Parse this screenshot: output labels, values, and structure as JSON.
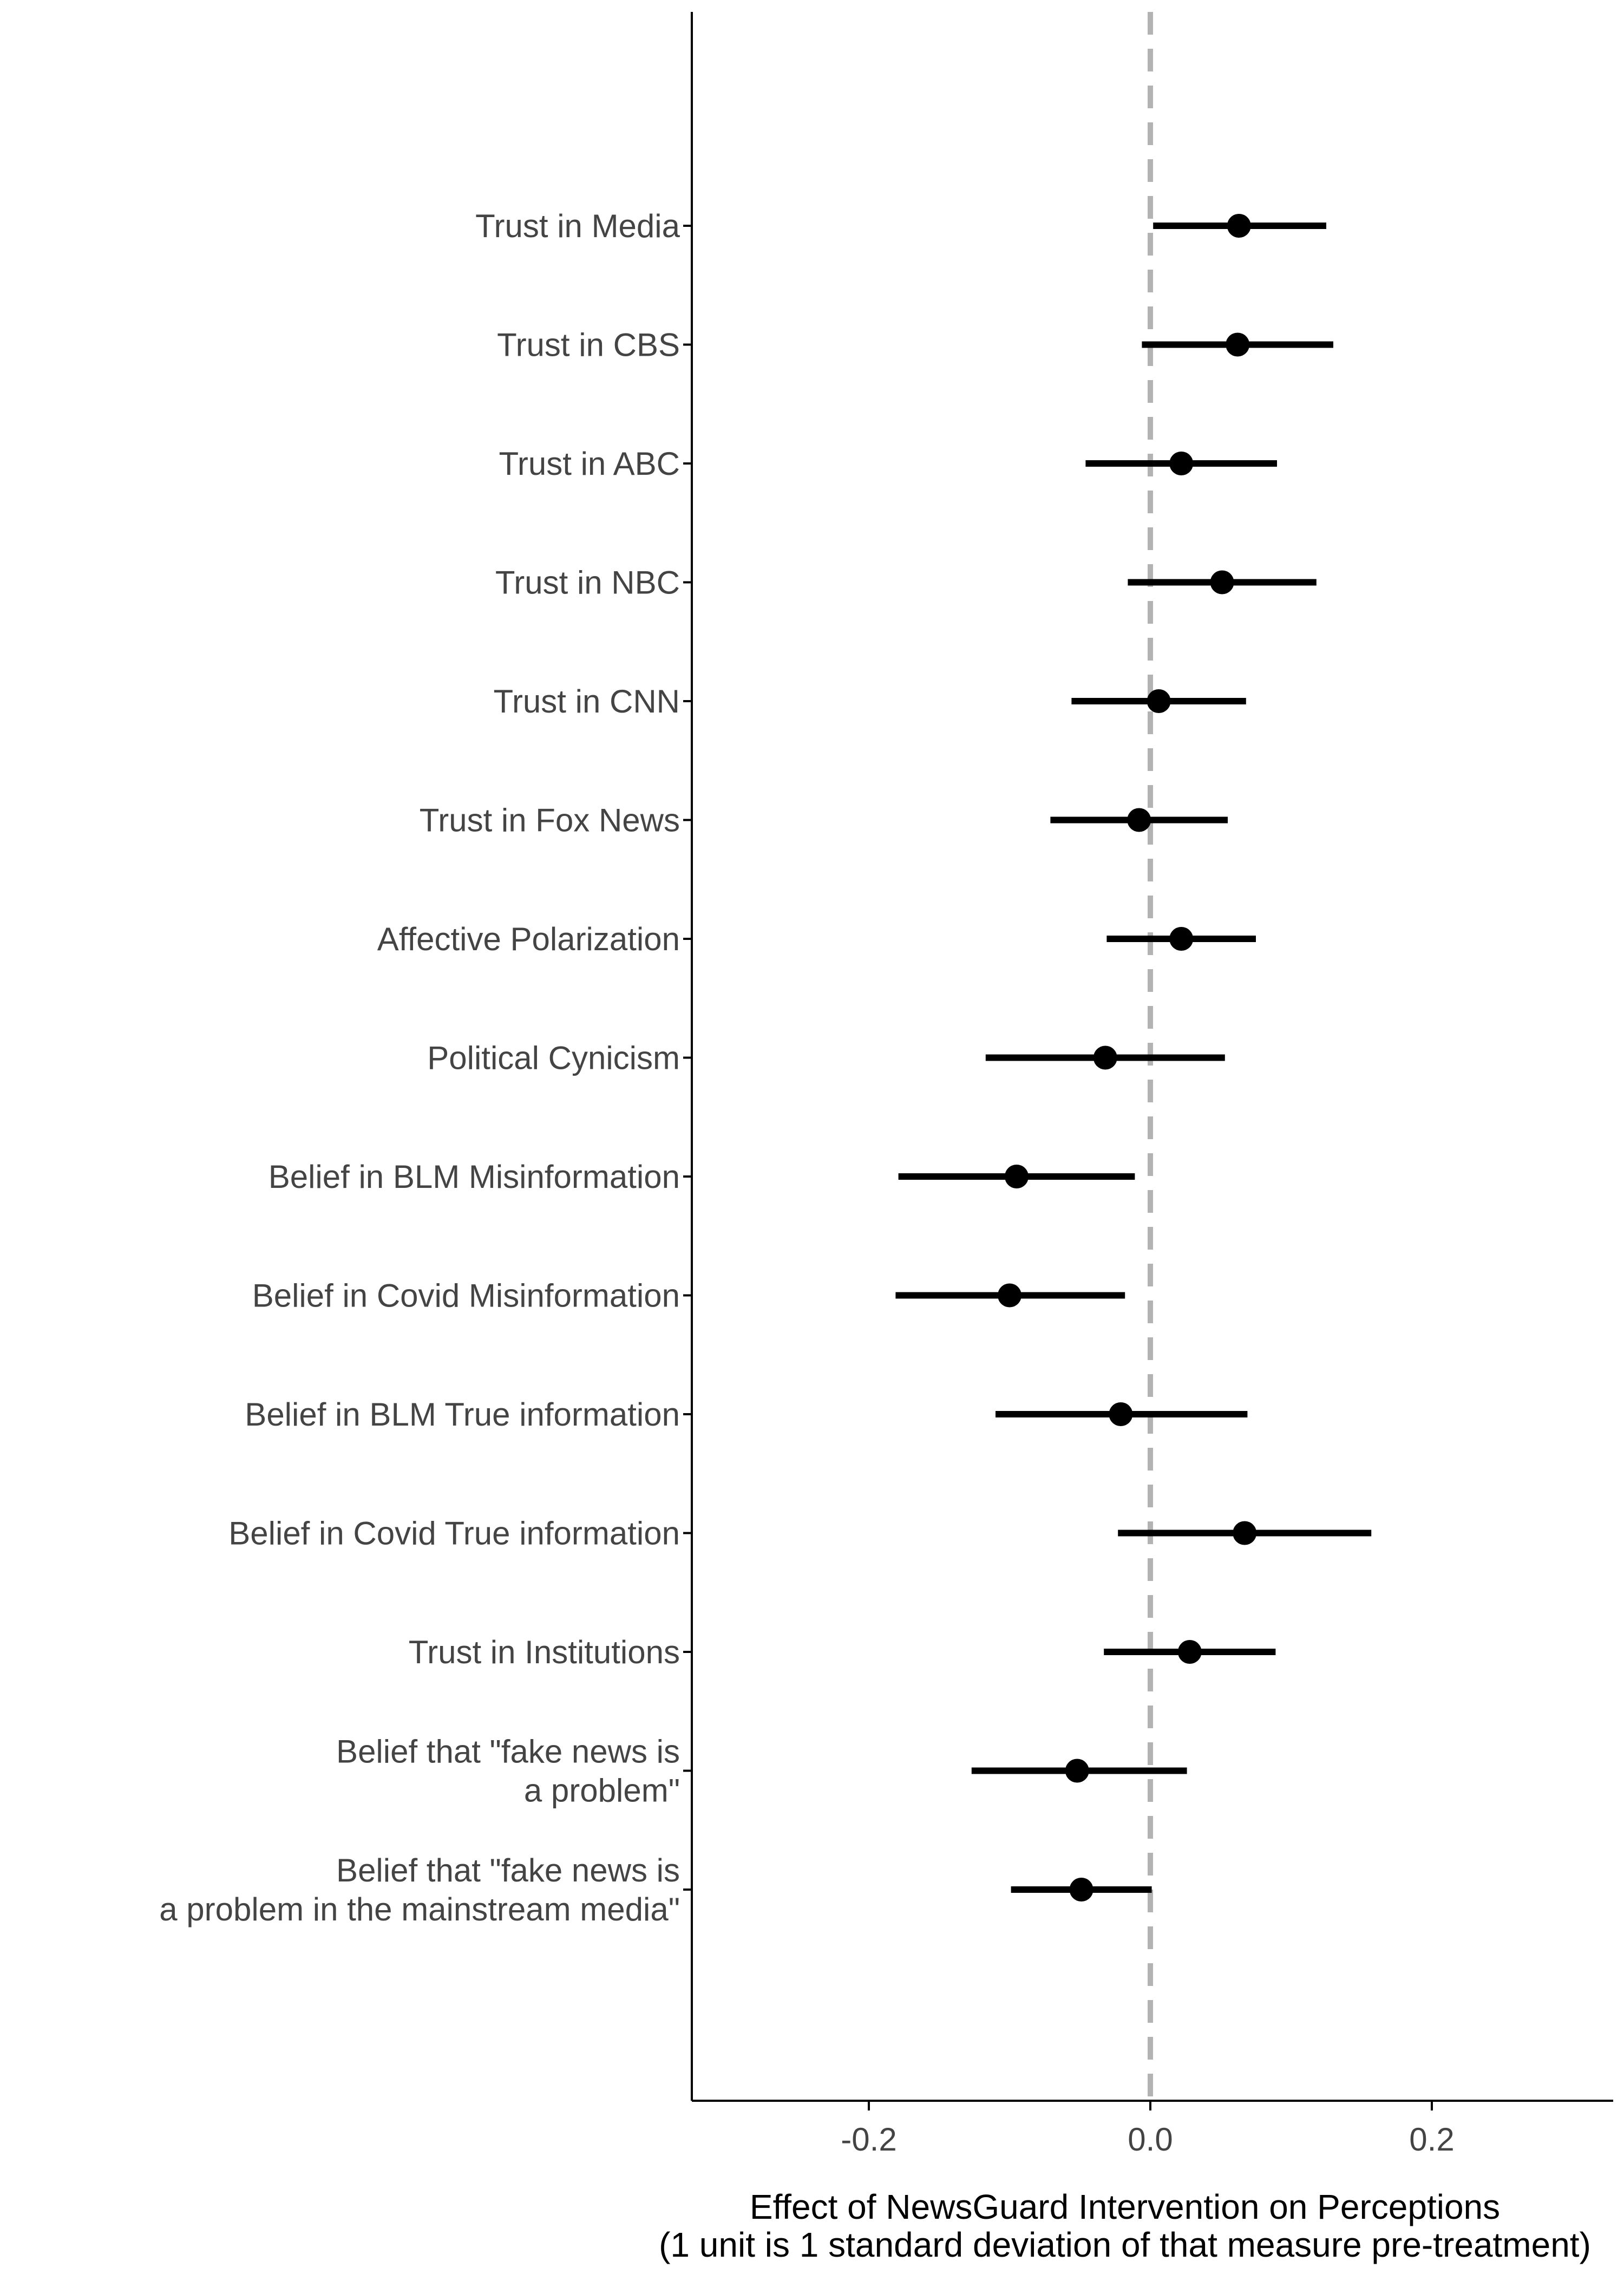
{
  "chart_data": {
    "type": "scatter",
    "subtype": "coefficient-plot",
    "title": "",
    "xlabel": "Effect of NewsGuard Intervention on Perceptions",
    "xlabel_line2": "(1 unit is 1 standard deviation of that measure pre-treatment)",
    "ylabel": "",
    "xlim": [
      -0.33,
      0.33
    ],
    "x_ticks": [
      -0.2,
      0.0,
      0.2
    ],
    "x_tick_labels": [
      "-0.2",
      "0.0",
      "0.2"
    ],
    "reference_line": {
      "x": 0.0,
      "style": "dashed",
      "color": "#b3b3b3"
    },
    "grid": false,
    "legend": "none",
    "colors": {
      "marks": "#000000",
      "axis": "#000000",
      "labels": "#444444",
      "reference": "#b3b3b3"
    },
    "rows": [
      {
        "label": [
          "Trust in Media"
        ],
        "estimate": 0.063,
        "lower": 0.002,
        "upper": 0.125
      },
      {
        "label": [
          "Trust in CBS"
        ],
        "estimate": 0.062,
        "lower": -0.006,
        "upper": 0.13
      },
      {
        "label": [
          "Trust in ABC"
        ],
        "estimate": 0.022,
        "lower": -0.046,
        "upper": 0.09
      },
      {
        "label": [
          "Trust in NBC"
        ],
        "estimate": 0.051,
        "lower": -0.016,
        "upper": 0.118
      },
      {
        "label": [
          "Trust in CNN"
        ],
        "estimate": 0.006,
        "lower": -0.056,
        "upper": 0.068
      },
      {
        "label": [
          "Trust in Fox News"
        ],
        "estimate": -0.008,
        "lower": -0.071,
        "upper": 0.055
      },
      {
        "label": [
          "Affective Polarization"
        ],
        "estimate": 0.022,
        "lower": -0.031,
        "upper": 0.075
      },
      {
        "label": [
          "Political Cynicism"
        ],
        "estimate": -0.032,
        "lower": -0.117,
        "upper": 0.053
      },
      {
        "label": [
          "Belief in BLM Misinformation"
        ],
        "estimate": -0.095,
        "lower": -0.179,
        "upper": -0.011
      },
      {
        "label": [
          "Belief in Covid Misinformation"
        ],
        "estimate": -0.1,
        "lower": -0.181,
        "upper": -0.018
      },
      {
        "label": [
          "Belief in BLM True information"
        ],
        "estimate": -0.021,
        "lower": -0.11,
        "upper": 0.069
      },
      {
        "label": [
          "Belief in Covid True information"
        ],
        "estimate": 0.067,
        "lower": -0.023,
        "upper": 0.157
      },
      {
        "label": [
          "Trust in Institutions"
        ],
        "estimate": 0.028,
        "lower": -0.033,
        "upper": 0.089
      },
      {
        "label": [
          "Belief that \"fake news is",
          "a problem\""
        ],
        "estimate": -0.052,
        "lower": -0.127,
        "upper": 0.026
      },
      {
        "label": [
          "Belief that \"fake news is",
          "a problem in the mainstream media\""
        ],
        "estimate": -0.049,
        "lower": -0.099,
        "upper": 0.001
      }
    ]
  }
}
